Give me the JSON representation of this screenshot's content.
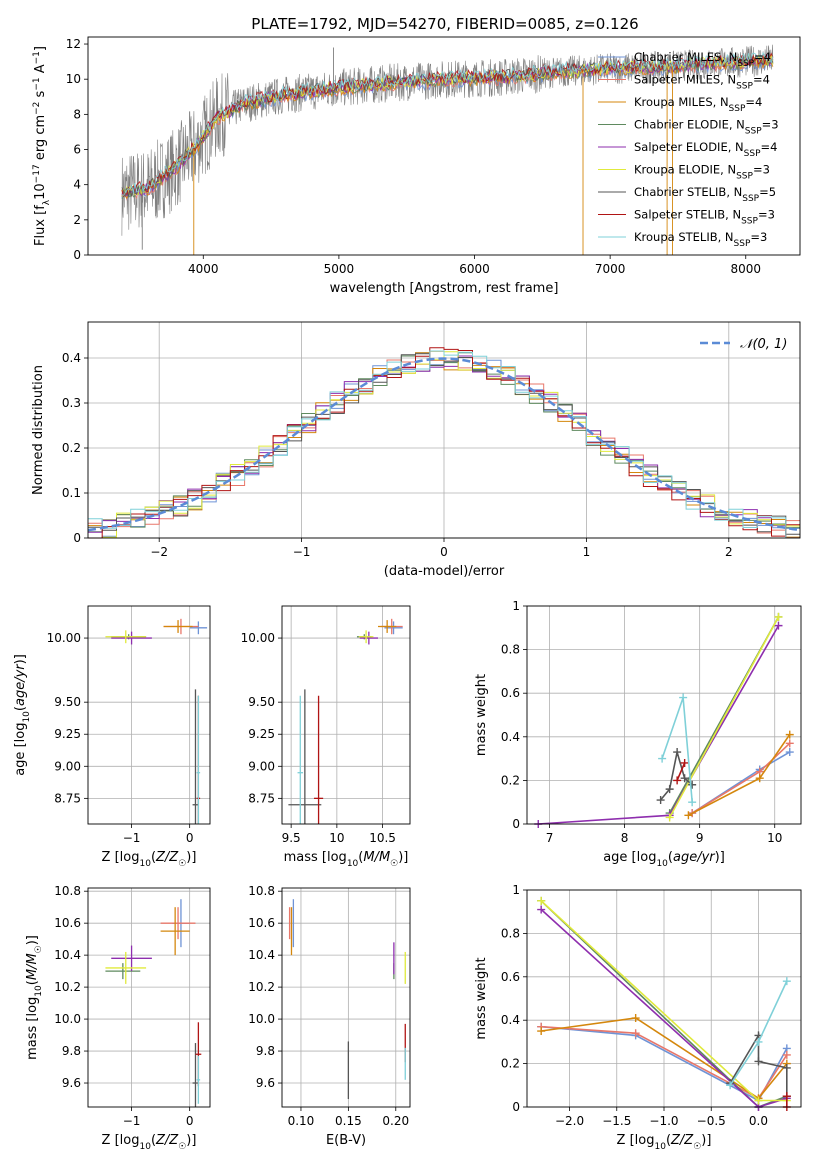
{
  "figure": {
    "title": "PLATE=1792, MJD=54270, FIBERID=0085, z=0.126"
  },
  "colors": {
    "chabrier_miles": "#6f93d6",
    "salpeter_miles": "#e8776a",
    "kroupa_miles": "#d4870d",
    "chabrier_elodie": "#5f8a5f",
    "salpeter_elodie": "#8e2eae",
    "kroupa_elodie": "#e0ea3c",
    "chabrier_stelib": "#555555",
    "salpeter_stelib": "#b01414",
    "kroupa_stelib": "#7fd0d8",
    "data": "#808080",
    "normal": "#5b8bd6"
  },
  "chart_data": [
    {
      "id": "spectrum",
      "type": "line",
      "title": "PLATE=1792, MJD=54270, FIBERID=0085, z=0.126",
      "xlabel": "wavelength [Angstrom, rest frame]",
      "ylabel": "Flux [f_λ 10^-17 erg cm^-2 s^-1 A^-1]",
      "xlim": [
        3150,
        8400
      ],
      "ylim": [
        0,
        12.4
      ],
      "xticks": [
        4000,
        5000,
        6000,
        7000,
        8000
      ],
      "yticks": [
        0,
        2,
        4,
        6,
        8,
        10,
        12
      ],
      "grid": false,
      "legend_position": "right",
      "legend": [
        {
          "label": "Chabrier MILES, N_SSP=4",
          "color": "chabrier_miles"
        },
        {
          "label": "Salpeter MILES, N_SSP=4",
          "color": "salpeter_miles"
        },
        {
          "label": "Kroupa MILES, N_SSP=4",
          "color": "kroupa_miles"
        },
        {
          "label": "Chabrier ELODIE, N_SSP=3",
          "color": "chabrier_elodie"
        },
        {
          "label": "Salpeter ELODIE, N_SSP=4",
          "color": "salpeter_elodie"
        },
        {
          "label": "Kroupa ELODIE, N_SSP=3",
          "color": "kroupa_elodie"
        },
        {
          "label": "Chabrier STELIB, N_SSP=5",
          "color": "chabrier_stelib"
        },
        {
          "label": "Salpeter STELIB, N_SSP=3",
          "color": "salpeter_stelib"
        },
        {
          "label": "Kroupa STELIB, N_SSP=3",
          "color": "kroupa_stelib"
        }
      ],
      "continuum": {
        "x": [
          3400,
          3600,
          3800,
          3950,
          4100,
          4300,
          4600,
          5000,
          5400,
          5800,
          6200,
          6600,
          7000,
          7400,
          7800,
          8200
        ],
        "y": [
          3.5,
          3.8,
          5.0,
          6.2,
          7.8,
          8.6,
          9.1,
          9.5,
          9.8,
          10.0,
          10.1,
          10.4,
          10.6,
          10.7,
          10.9,
          11.1
        ]
      },
      "spikes": [
        {
          "x": 3550,
          "y": 0.3
        },
        {
          "x": 3930,
          "y": 0.0
        },
        {
          "x": 4960,
          "y": 11.8
        },
        {
          "x": 6800,
          "y": 0.0
        },
        {
          "x": 7420,
          "y": 0.0
        },
        {
          "x": 7460,
          "y": 0.0
        }
      ]
    },
    {
      "id": "residuals",
      "type": "line",
      "xlabel": "(data-model)/error",
      "ylabel": "Normed distribution",
      "xlim": [
        -2.5,
        2.5
      ],
      "ylim": [
        0,
        0.48
      ],
      "xticks": [
        -2,
        -1,
        0,
        1,
        2
      ],
      "yticks": [
        0.0,
        0.1,
        0.2,
        0.3,
        0.4
      ],
      "grid": true,
      "legend_position": "top-right",
      "legend": [
        {
          "label": "𝒩(0, 1)",
          "color": "normal",
          "style": "dashed"
        }
      ]
    },
    {
      "id": "age_vs_Z",
      "type": "scatter",
      "xlabel": "Z [log10(Z/Z☉)]",
      "ylabel": "age  [log10(age/yr)]",
      "xlim": [
        -1.75,
        0.35
      ],
      "ylim": [
        8.55,
        10.25
      ],
      "xticks": [
        -1,
        0
      ],
      "yticks": [
        8.75,
        9.0,
        9.25,
        9.5,
        10.0
      ],
      "ytick_labels": [
        "8.75",
        "9.00",
        "9.25",
        "9.50",
        "10.00"
      ],
      "grid": true,
      "series": [
        {
          "color": "chabrier_miles",
          "x": 0.15,
          "y": 10.08,
          "xerr": 0.15,
          "yerr": 0.05
        },
        {
          "color": "salpeter_miles",
          "x": -0.15,
          "y": 10.09,
          "xerr": 0.3,
          "yerr": 0.06
        },
        {
          "color": "kroupa_miles",
          "x": -0.2,
          "y": 10.09,
          "xerr": 0.25,
          "yerr": 0.05
        },
        {
          "color": "chabrier_elodie",
          "x": -1.05,
          "y": 10.01,
          "xerr": 0.3,
          "yerr": 0.02
        },
        {
          "color": "salpeter_elodie",
          "x": -1.0,
          "y": 10.0,
          "xerr": 0.35,
          "yerr": 0.05
        },
        {
          "color": "kroupa_elodie",
          "x": -1.1,
          "y": 10.01,
          "xerr": 0.35,
          "yerr": 0.05
        },
        {
          "color": "chabrier_stelib",
          "x": 0.1,
          "y": 8.7,
          "xerr": 0.05,
          "yerr": 0.9
        },
        {
          "color": "salpeter_stelib",
          "x": 0.15,
          "y": 8.75,
          "xerr": 0.03,
          "yerr": 0.8
        },
        {
          "color": "kroupa_stelib",
          "x": 0.15,
          "y": 8.95,
          "xerr": 0.03,
          "yerr": 0.6
        }
      ]
    },
    {
      "id": "age_vs_mass",
      "type": "scatter",
      "xlabel": "mass [log10(M/M☉)]",
      "xlim": [
        9.4,
        10.8
      ],
      "ylim": [
        8.55,
        10.25
      ],
      "xticks": [
        9.5,
        10.0,
        10.5
      ],
      "yticks": [
        8.75,
        9.0,
        9.25,
        9.5,
        10.0
      ],
      "ytick_labels": [
        "8.75",
        "9.00",
        "9.25",
        "9.50",
        "10.00"
      ],
      "grid": true,
      "series": [
        {
          "color": "chabrier_miles",
          "x": 10.62,
          "y": 10.08,
          "xerr": 0.1,
          "yerr": 0.05
        },
        {
          "color": "salpeter_miles",
          "x": 10.6,
          "y": 10.09,
          "xerr": 0.12,
          "yerr": 0.06
        },
        {
          "color": "kroupa_miles",
          "x": 10.55,
          "y": 10.09,
          "xerr": 0.1,
          "yerr": 0.05
        },
        {
          "color": "chabrier_elodie",
          "x": 10.3,
          "y": 10.01,
          "xerr": 0.08,
          "yerr": 0.02
        },
        {
          "color": "salpeter_elodie",
          "x": 10.35,
          "y": 10.0,
          "xerr": 0.1,
          "yerr": 0.05
        },
        {
          "color": "kroupa_elodie",
          "x": 10.32,
          "y": 10.01,
          "xerr": 0.08,
          "yerr": 0.05
        },
        {
          "color": "chabrier_stelib",
          "x": 9.65,
          "y": 8.7,
          "xerr": 0.18,
          "yerr": 0.9
        },
        {
          "color": "salpeter_stelib",
          "x": 9.8,
          "y": 8.75,
          "xerr": 0.05,
          "yerr": 0.8
        },
        {
          "color": "kroupa_stelib",
          "x": 9.6,
          "y": 8.95,
          "xerr": 0.03,
          "yerr": 0.6
        }
      ]
    },
    {
      "id": "weight_vs_age",
      "type": "line",
      "xlabel": "age  [log10(age/yr)]",
      "ylabel": "mass weight",
      "xlim": [
        6.7,
        10.35
      ],
      "ylim": [
        0,
        1.0
      ],
      "xticks": [
        7,
        8,
        9,
        10
      ],
      "yticks": [
        0.0,
        0.2,
        0.4,
        0.6,
        0.8,
        1.0
      ],
      "grid": true,
      "series": [
        {
          "color": "chabrier_miles",
          "x": [
            8.9,
            9.8,
            10.2
          ],
          "y": [
            0.05,
            0.25,
            0.33
          ]
        },
        {
          "color": "salpeter_miles",
          "x": [
            8.9,
            9.8,
            10.2
          ],
          "y": [
            0.05,
            0.24,
            0.37
          ]
        },
        {
          "color": "kroupa_miles",
          "x": [
            8.85,
            9.8,
            10.2
          ],
          "y": [
            0.04,
            0.21,
            0.41
          ]
        },
        {
          "color": "chabrier_elodie",
          "x": [
            8.6,
            10.05
          ],
          "y": [
            0.05,
            0.95
          ]
        },
        {
          "color": "salpeter_elodie",
          "x": [
            6.85,
            8.6,
            10.05
          ],
          "y": [
            0.0,
            0.04,
            0.91
          ]
        },
        {
          "color": "kroupa_elodie",
          "x": [
            8.6,
            10.05
          ],
          "y": [
            0.03,
            0.95
          ]
        },
        {
          "color": "chabrier_stelib",
          "x": [
            8.48,
            8.6,
            8.7,
            8.8,
            8.9
          ],
          "y": [
            0.11,
            0.16,
            0.33,
            0.21,
            0.18
          ]
        },
        {
          "color": "salpeter_stelib",
          "x": [
            8.7,
            8.8
          ],
          "y": [
            0.2,
            0.28
          ]
        },
        {
          "color": "kroupa_stelib",
          "x": [
            8.5,
            8.78,
            8.9
          ],
          "y": [
            0.3,
            0.58,
            0.1
          ]
        }
      ]
    },
    {
      "id": "mass_vs_Z",
      "type": "scatter",
      "xlabel": "Z [log10(Z/Z☉)]",
      "ylabel": "mass [log10(M/M☉)]",
      "xlim": [
        -1.75,
        0.35
      ],
      "ylim": [
        9.45,
        10.82
      ],
      "xticks": [
        -1,
        0
      ],
      "yticks": [
        9.6,
        9.8,
        10.0,
        10.2,
        10.4,
        10.6,
        10.8
      ],
      "ytick_labels": [
        "9.6",
        "9.8",
        "10.0",
        "10.2",
        "10.4",
        "10.6",
        "10.8"
      ],
      "grid": true,
      "series": [
        {
          "color": "chabrier_miles",
          "x": -0.15,
          "y": 10.6,
          "xerr": 0.15,
          "yerr": 0.15
        },
        {
          "color": "salpeter_miles",
          "x": -0.2,
          "y": 10.6,
          "xerr": 0.3,
          "yerr": 0.1
        },
        {
          "color": "kroupa_miles",
          "x": -0.25,
          "y": 10.55,
          "xerr": 0.25,
          "yerr": 0.15
        },
        {
          "color": "chabrier_elodie",
          "x": -1.15,
          "y": 10.3,
          "xerr": 0.3,
          "yerr": 0.05
        },
        {
          "color": "salpeter_elodie",
          "x": -1.0,
          "y": 10.38,
          "xerr": 0.35,
          "yerr": 0.08
        },
        {
          "color": "kroupa_elodie",
          "x": -1.1,
          "y": 10.32,
          "xerr": 0.35,
          "yerr": 0.1
        },
        {
          "color": "chabrier_stelib",
          "x": 0.1,
          "y": 9.6,
          "xerr": 0.05,
          "yerr": 0.25
        },
        {
          "color": "salpeter_stelib",
          "x": 0.15,
          "y": 9.78,
          "xerr": 0.05,
          "yerr": 0.2
        },
        {
          "color": "kroupa_stelib",
          "x": 0.15,
          "y": 9.62,
          "xerr": 0.03,
          "yerr": 0.15
        }
      ]
    },
    {
      "id": "mass_vs_ebv",
      "type": "scatter",
      "xlabel": "E(B-V)",
      "xlim": [
        0.08,
        0.215
      ],
      "ylim": [
        9.45,
        10.82
      ],
      "xticks": [
        0.1,
        0.15,
        0.2
      ],
      "yticks": [
        9.6,
        9.8,
        10.0,
        10.2,
        10.4,
        10.6,
        10.8
      ],
      "xtick_labels": [
        "0.10",
        "0.15",
        "0.20"
      ],
      "ytick_labels": [
        "9.6",
        "9.8",
        "10.0",
        "10.2",
        "10.4",
        "10.6",
        "10.8"
      ],
      "grid": true,
      "series": [
        {
          "color": "chabrier_miles",
          "x": 0.092,
          "y": 10.6,
          "yerr": 0.15
        },
        {
          "color": "salpeter_miles",
          "x": 0.088,
          "y": 10.6,
          "yerr": 0.1
        },
        {
          "color": "kroupa_miles",
          "x": 0.09,
          "y": 10.55,
          "yerr": 0.15
        },
        {
          "color": "chabrier_elodie",
          "x": 0.198,
          "y": 10.3,
          "yerr": 0.05
        },
        {
          "color": "salpeter_elodie",
          "x": 0.198,
          "y": 10.38,
          "yerr": 0.1
        },
        {
          "color": "kroupa_elodie",
          "x": 0.21,
          "y": 10.32,
          "yerr": 0.1
        },
        {
          "color": "chabrier_stelib",
          "x": 0.15,
          "y": 9.68,
          "yerr": 0.18
        },
        {
          "color": "salpeter_stelib",
          "x": 0.21,
          "y": 9.85,
          "yerr": 0.12
        },
        {
          "color": "kroupa_stelib",
          "x": 0.21,
          "y": 9.72,
          "yerr": 0.1
        }
      ]
    },
    {
      "id": "weight_vs_Z",
      "type": "line",
      "xlabel": "Z [log10(Z/Z☉)]",
      "ylabel": "mass weight",
      "xlim": [
        -2.45,
        0.45
      ],
      "ylim": [
        0,
        1.0
      ],
      "xticks": [
        -2.0,
        -1.5,
        -1.0,
        -0.5,
        0.0
      ],
      "xtick_labels": [
        "−2.0",
        "−1.5",
        "−1.0",
        "−0.5",
        "0.0"
      ],
      "yticks": [
        0.0,
        0.2,
        0.4,
        0.6,
        0.8,
        1.0
      ],
      "grid": true,
      "series": [
        {
          "color": "chabrier_miles",
          "x": [
            -2.3,
            -1.3,
            0.0,
            0.3
          ],
          "y": [
            0.37,
            0.33,
            0.03,
            0.27
          ]
        },
        {
          "color": "salpeter_miles",
          "x": [
            -2.3,
            -1.3,
            0.0,
            0.3
          ],
          "y": [
            0.37,
            0.34,
            0.04,
            0.24
          ]
        },
        {
          "color": "kroupa_miles",
          "x": [
            -2.3,
            -1.3,
            0.0,
            0.3
          ],
          "y": [
            0.35,
            0.41,
            0.04,
            0.2
          ]
        },
        {
          "color": "chabrier_elodie",
          "x": [
            -2.3,
            0.0,
            0.3
          ],
          "y": [
            0.95,
            0.0,
            0.05
          ]
        },
        {
          "color": "salpeter_elodie",
          "x": [
            -2.3,
            0.0,
            0.3
          ],
          "y": [
            0.91,
            0.0,
            0.04
          ]
        },
        {
          "color": "kroupa_elodie",
          "x": [
            -2.3,
            0.0,
            0.3
          ],
          "y": [
            0.95,
            0.03,
            0.03
          ]
        },
        {
          "color": "chabrier_stelib",
          "x": [
            -0.3,
            0.0,
            0.0,
            0.3,
            0.3
          ],
          "y": [
            0.11,
            0.33,
            0.21,
            0.18,
            0.05
          ]
        },
        {
          "color": "salpeter_stelib",
          "x": [
            0.3,
            0.3
          ],
          "y": [
            0.0,
            0.05
          ]
        },
        {
          "color": "kroupa_stelib",
          "x": [
            -0.3,
            0.0,
            0.3
          ],
          "y": [
            0.1,
            0.3,
            0.58
          ]
        }
      ]
    }
  ]
}
